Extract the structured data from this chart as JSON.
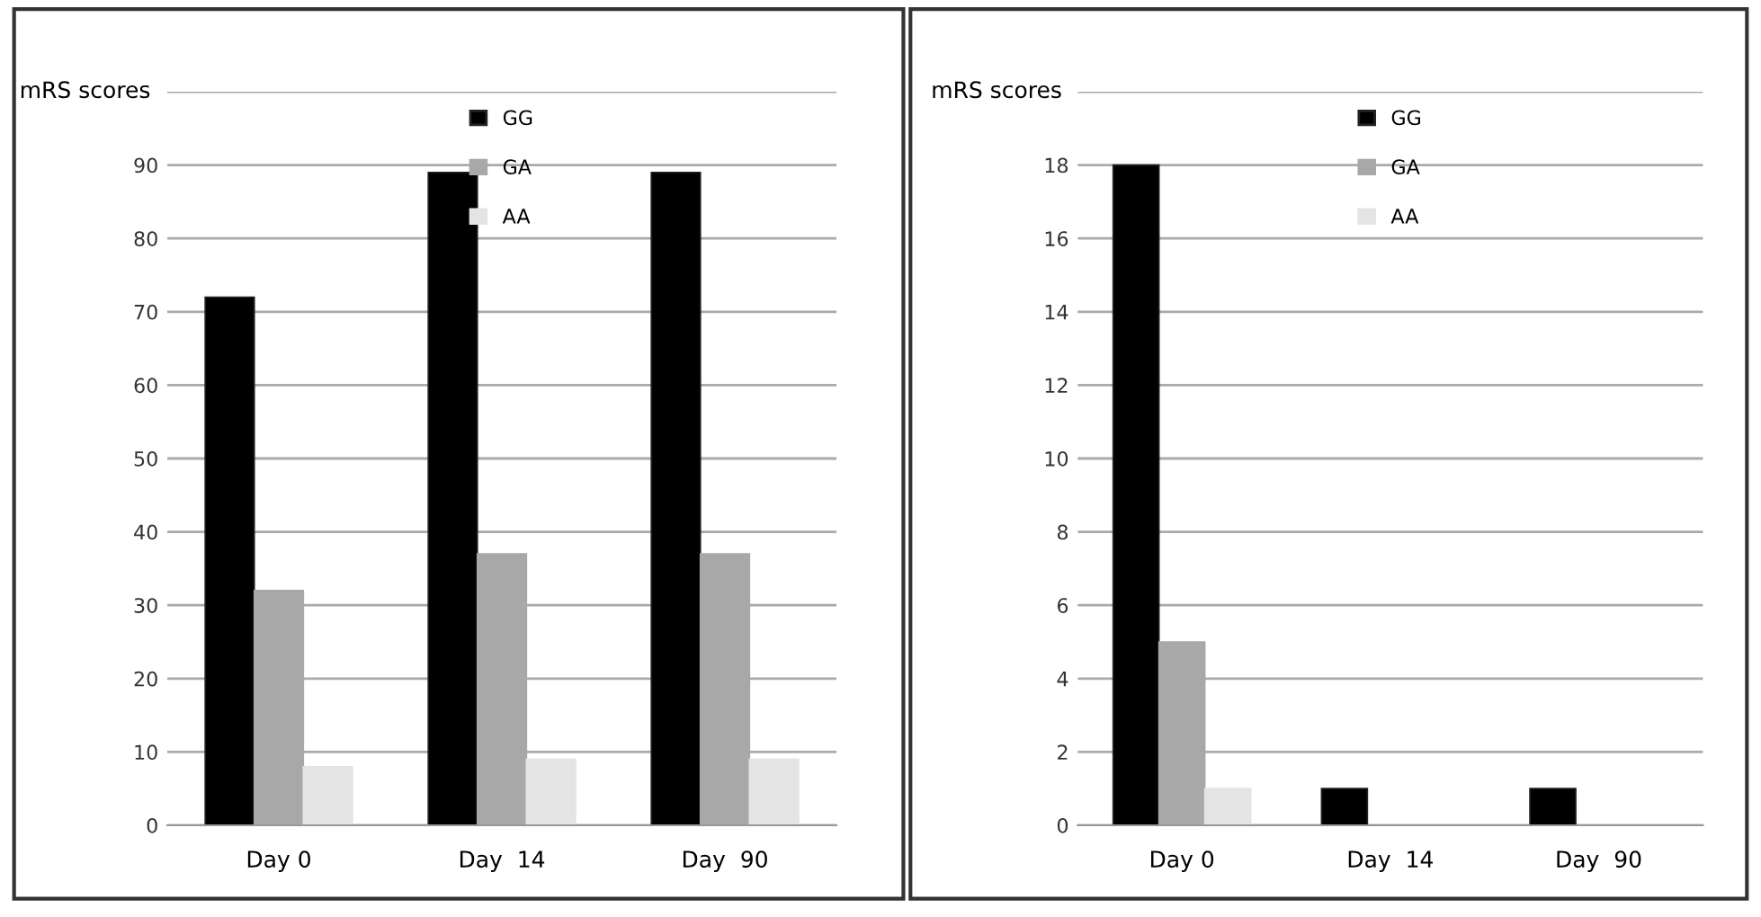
{
  "chart_data": [
    {
      "type": "bar",
      "ylabel": "mRS scores",
      "categories": [
        "Day 0",
        "Day  14",
        "Day  90"
      ],
      "ylim": [
        0,
        100
      ],
      "yticks": [
        0,
        10,
        20,
        30,
        40,
        50,
        60,
        70,
        80,
        90,
        {
          "value": 100,
          "label": null
        }
      ],
      "grid": "y",
      "legend": "top",
      "series": [
        {
          "name": "GG",
          "color": "#000000",
          "values": [
            72,
            89,
            89
          ]
        },
        {
          "name": "GA",
          "color": "#a8a8a8",
          "values": [
            32,
            37,
            37
          ]
        },
        {
          "name": "AA",
          "color": "#e4e4e4",
          "values": [
            8,
            9,
            9
          ]
        }
      ]
    },
    {
      "type": "bar",
      "ylabel": "mRS scores",
      "categories": [
        "Day 0",
        "Day  14",
        "Day  90"
      ],
      "ylim": [
        0,
        20
      ],
      "yticks": [
        0,
        2,
        4,
        6,
        8,
        10,
        12,
        14,
        16,
        18,
        {
          "value": 20,
          "label": null
        }
      ],
      "grid": "y",
      "legend": "top",
      "series": [
        {
          "name": "GG",
          "color": "#000000",
          "values": [
            18,
            1,
            1
          ]
        },
        {
          "name": "GA",
          "color": "#a8a8a8",
          "values": [
            5,
            0,
            0
          ]
        },
        {
          "name": "AA",
          "color": "#e4e4e4",
          "values": [
            1,
            0,
            0
          ]
        }
      ]
    }
  ]
}
